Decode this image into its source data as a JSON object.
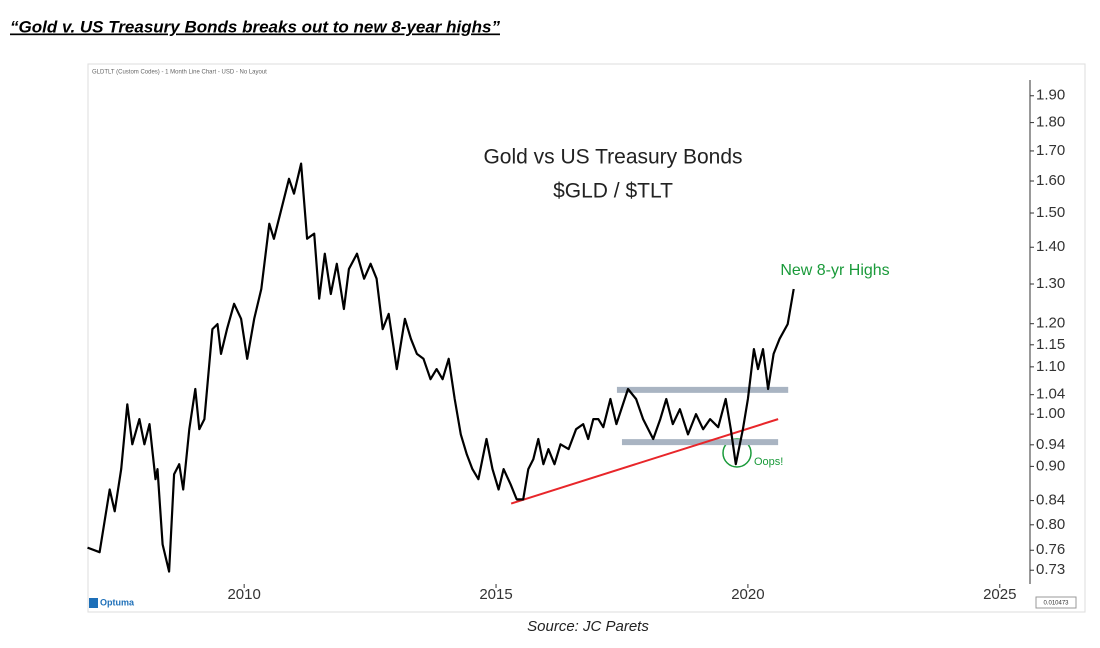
{
  "headline": "“Gold v. US Treasury Bonds breaks out to new 8-year highs”",
  "source": "Source: JC Parets",
  "chart_data": {
    "type": "line",
    "header": "GLDTLT (Custom Codes) - 1 Month Line Chart - USD - No Layout",
    "title": "Gold vs US Treasury Bonds",
    "subtitle": "$GLD / $TLT",
    "brand": "Optuma",
    "last_value_label": "0.010473",
    "annotations": [
      {
        "text": "New 8-yr Highs",
        "color": "#1a9a3a"
      },
      {
        "text": "Oops!",
        "color": "#1a9a3a"
      }
    ],
    "y_scale": "log",
    "xlim": [
      2006.9,
      2025.6
    ],
    "xticks": [
      2010,
      2015,
      2020,
      2025
    ],
    "ylim": [
      0.71,
      1.93
    ],
    "yticks": [
      {
        "value": 1.9,
        "label": "1.90"
      },
      {
        "value": 1.8,
        "label": "1.80"
      },
      {
        "value": 1.7,
        "label": "1.70"
      },
      {
        "value": 1.6,
        "label": "1.60"
      },
      {
        "value": 1.5,
        "label": "1.50"
      },
      {
        "value": 1.4,
        "label": "1.40"
      },
      {
        "value": 1.3,
        "label": "1.30"
      },
      {
        "value": 1.2,
        "label": "1.20"
      },
      1.15,
      {
        "value": 1.1,
        "label": "1.10"
      },
      1.04,
      {
        "value": 1.0,
        "label": "1.00"
      },
      0.94,
      {
        "value": 0.9,
        "label": "0.90"
      },
      0.84,
      {
        "value": 0.8,
        "label": "0.80"
      },
      0.76,
      0.73
    ],
    "levels": [
      {
        "color": "#a9b4c2",
        "x": [
          2017.4,
          2020.8
        ],
        "y": [
          1.05,
          1.05
        ]
      },
      {
        "color": "#a9b4c2",
        "x": [
          2017.5,
          2020.6
        ],
        "y": [
          0.945,
          0.945
        ]
      },
      {
        "color": "#e8262a",
        "x": [
          2015.3,
          2020.6
        ],
        "y": [
          0.835,
          0.99
        ]
      }
    ],
    "series": [
      {
        "name": "GLDTLT",
        "color": "#000000",
        "x": [
          2006.89,
          2007.13,
          2007.33,
          2007.43,
          2007.56,
          2007.68,
          2007.78,
          2007.92,
          2008.02,
          2008.12,
          2008.24,
          2008.28,
          2008.38,
          2008.51,
          2008.61,
          2008.71,
          2008.79,
          2008.91,
          2009.03,
          2009.11,
          2009.21,
          2009.37,
          2009.47,
          2009.54,
          2009.66,
          2009.8,
          2009.94,
          2010.06,
          2010.2,
          2010.34,
          2010.5,
          2010.59,
          2010.79,
          2010.89,
          2010.99,
          2011.13,
          2011.25,
          2011.39,
          2011.49,
          2011.6,
          2011.72,
          2011.84,
          2011.98,
          2012.08,
          2012.24,
          2012.38,
          2012.51,
          2012.63,
          2012.75,
          2012.87,
          2013.03,
          2013.19,
          2013.31,
          2013.43,
          2013.56,
          2013.7,
          2013.82,
          2013.94,
          2014.06,
          2014.18,
          2014.3,
          2014.42,
          2014.53,
          2014.65,
          2014.81,
          2014.93,
          2015.05,
          2015.15,
          2015.29,
          2015.41,
          2015.54,
          2015.64,
          2015.74,
          2015.84,
          2015.94,
          2016.04,
          2016.16,
          2016.28,
          2016.44,
          2016.59,
          2016.73,
          2016.83,
          2016.93,
          2017.03,
          2017.13,
          2017.27,
          2017.39,
          2017.62,
          2017.78,
          2017.92,
          2018.12,
          2018.26,
          2018.38,
          2018.51,
          2018.65,
          2018.81,
          2018.97,
          2019.11,
          2019.25,
          2019.41,
          2019.56,
          2019.66,
          2019.76,
          2019.9,
          2020.0,
          2020.12,
          2020.2,
          2020.3,
          2020.4,
          2020.51,
          2020.63,
          2020.79,
          2020.91
        ],
        "values": [
          0.764,
          0.757,
          0.859,
          0.822,
          0.895,
          1.02,
          0.941,
          0.99,
          0.941,
          0.98,
          0.877,
          0.895,
          0.769,
          0.728,
          0.886,
          0.904,
          0.859,
          0.97,
          1.052,
          0.97,
          0.99,
          1.187,
          1.199,
          1.129,
          1.187,
          1.249,
          1.212,
          1.118,
          1.212,
          1.287,
          1.468,
          1.424,
          1.544,
          1.607,
          1.56,
          1.657,
          1.424,
          1.439,
          1.262,
          1.382,
          1.274,
          1.354,
          1.236,
          1.34,
          1.382,
          1.314,
          1.354,
          1.314,
          1.187,
          1.224,
          1.095,
          1.212,
          1.164,
          1.129,
          1.118,
          1.073,
          1.095,
          1.073,
          1.118,
          1.031,
          0.96,
          0.922,
          0.895,
          0.877,
          0.951,
          0.895,
          0.859,
          0.895,
          0.868,
          0.842,
          0.842,
          0.895,
          0.913,
          0.951,
          0.904,
          0.932,
          0.904,
          0.941,
          0.932,
          0.97,
          0.98,
          0.951,
          0.99,
          0.99,
          0.974,
          1.031,
          0.98,
          1.052,
          1.031,
          0.99,
          0.951,
          0.99,
          1.031,
          0.98,
          1.01,
          0.96,
          1.0,
          0.97,
          0.99,
          0.974,
          1.031,
          0.97,
          0.904,
          0.97,
          1.031,
          1.14,
          1.095,
          1.14,
          1.052,
          1.129,
          1.164,
          1.199,
          1.287
        ]
      }
    ]
  }
}
